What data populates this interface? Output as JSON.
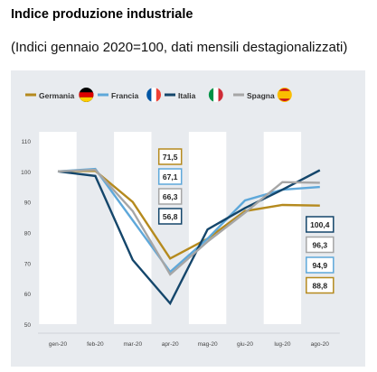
{
  "title": "Indice produzione industriale",
  "subtitle": "(Indici gennaio 2020=100, dati mensili destagionalizzati)",
  "chart_data": {
    "type": "line",
    "categories": [
      "gen-20",
      "feb-20",
      "mar-20",
      "apr-20",
      "mag-20",
      "giu-20",
      "lug-20",
      "ago-20"
    ],
    "yticks": [
      50,
      60,
      70,
      80,
      90,
      100,
      110
    ],
    "ylim": [
      50,
      110
    ],
    "grid": false,
    "legend_position": "top",
    "series": [
      {
        "name": "Germania",
        "color": "#b58a1e",
        "flag": "germany-flag",
        "values": [
          100,
          100.2,
          90,
          71.5,
          78,
          87,
          89,
          88.8
        ]
      },
      {
        "name": "Francia",
        "color": "#5ea8da",
        "flag": "france-flag",
        "values": [
          100,
          100.8,
          84,
          67.1,
          78,
          90.5,
          94,
          94.9
        ]
      },
      {
        "name": "Italia",
        "color": "#14466b",
        "flag": "italy-flag",
        "values": [
          100,
          98.5,
          71,
          56.8,
          81,
          88,
          94,
          100.4
        ]
      },
      {
        "name": "Spagna",
        "color": "#a6a6a6",
        "flag": "spain-flag",
        "values": [
          100,
          100.5,
          87,
          66.3,
          77,
          86.5,
          96.5,
          96.3
        ]
      }
    ],
    "annotations": {
      "apr": {
        "labels": [
          "71,5",
          "67,1",
          "66,3",
          "56,8"
        ],
        "border_colors": [
          "#b58a1e",
          "#5ea8da",
          "#a6a6a6",
          "#14466b"
        ]
      },
      "ago": {
        "labels": [
          "100,4",
          "96,3",
          "94,9",
          "88,8"
        ],
        "border_colors": [
          "#14466b",
          "#a6a6a6",
          "#5ea8da",
          "#b58a1e"
        ]
      }
    }
  }
}
